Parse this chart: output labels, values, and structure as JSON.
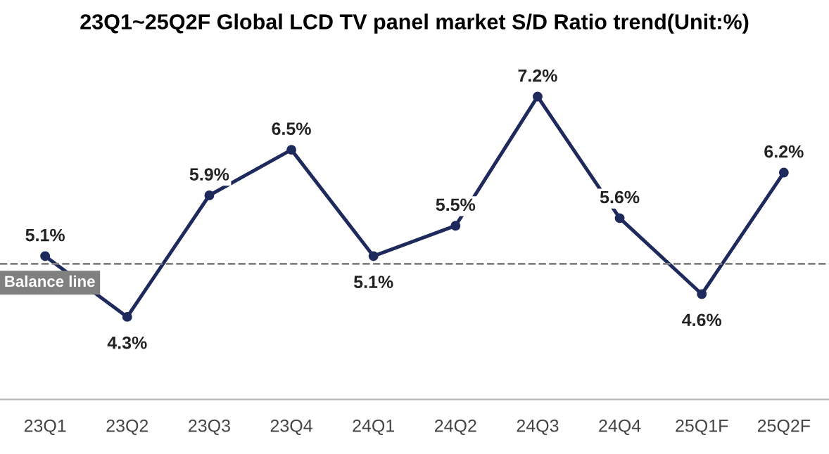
{
  "chart_data": {
    "type": "line",
    "title": "23Q1~25Q2F Global LCD TV panel market S/D Ratio trend(Unit:%)",
    "categories": [
      "23Q1",
      "23Q2",
      "23Q3",
      "23Q4",
      "24Q1",
      "24Q2",
      "24Q3",
      "24Q4",
      "25Q1F",
      "25Q2F"
    ],
    "series": [
      {
        "color": "#1f2a5c",
        "values": [
          5.1,
          4.3,
          5.9,
          6.5,
          5.1,
          5.5,
          7.2,
          5.6,
          4.6,
          6.2
        ],
        "value_labels": [
          "5.1%",
          "4.3%",
          "5.9%",
          "6.5%",
          "5.1%",
          "5.5%",
          "7.2%",
          "5.6%",
          "4.6%",
          "6.2%"
        ]
      }
    ],
    "marker": "circle",
    "line_style": "solid",
    "grid": false,
    "legend": false,
    "ref_lines": [
      {
        "axis": "y",
        "value": 5.0,
        "label": "Balance line",
        "color": "#808080",
        "line_style": "dashed"
      }
    ]
  }
}
